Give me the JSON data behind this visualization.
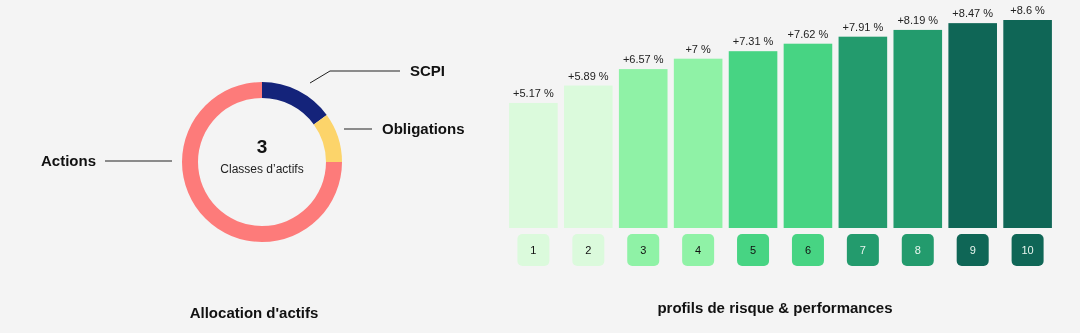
{
  "chart_data": [
    {
      "type": "donut",
      "categories": [
        "SCPI",
        "Obligations",
        "Actions"
      ],
      "values": [
        15,
        10,
        75
      ],
      "colors": [
        "#14237a",
        "#fcd46a",
        "#fd7b7a"
      ],
      "annotations": [
        "3",
        "Classes d’actifs",
        "Allocation d'actifs"
      ]
    },
    {
      "type": "bar",
      "xlabel": "profils de risque & performances",
      "categories": [
        "1",
        "2",
        "3",
        "4",
        "5",
        "6",
        "7",
        "8",
        "9",
        "10"
      ],
      "values": [
        5.17,
        5.89,
        6.57,
        7,
        7.31,
        7.62,
        7.91,
        8.19,
        8.47,
        8.6
      ],
      "value_labels": [
        "+5.17 %",
        "+5.89 %",
        "+6.57 %",
        "+7 %",
        "+7.31 %",
        "+7.62 %",
        "+7.91 %",
        "+8.19 %",
        "+8.47 %",
        "+8.6 %"
      ],
      "colors": [
        "#dbfadc",
        "#dbfadc",
        "#8ff2a6",
        "#8ff2a6",
        "#47d483",
        "#47d483",
        "#239b6d",
        "#239b6d",
        "#0f6656",
        "#0f6656"
      ]
    }
  ]
}
